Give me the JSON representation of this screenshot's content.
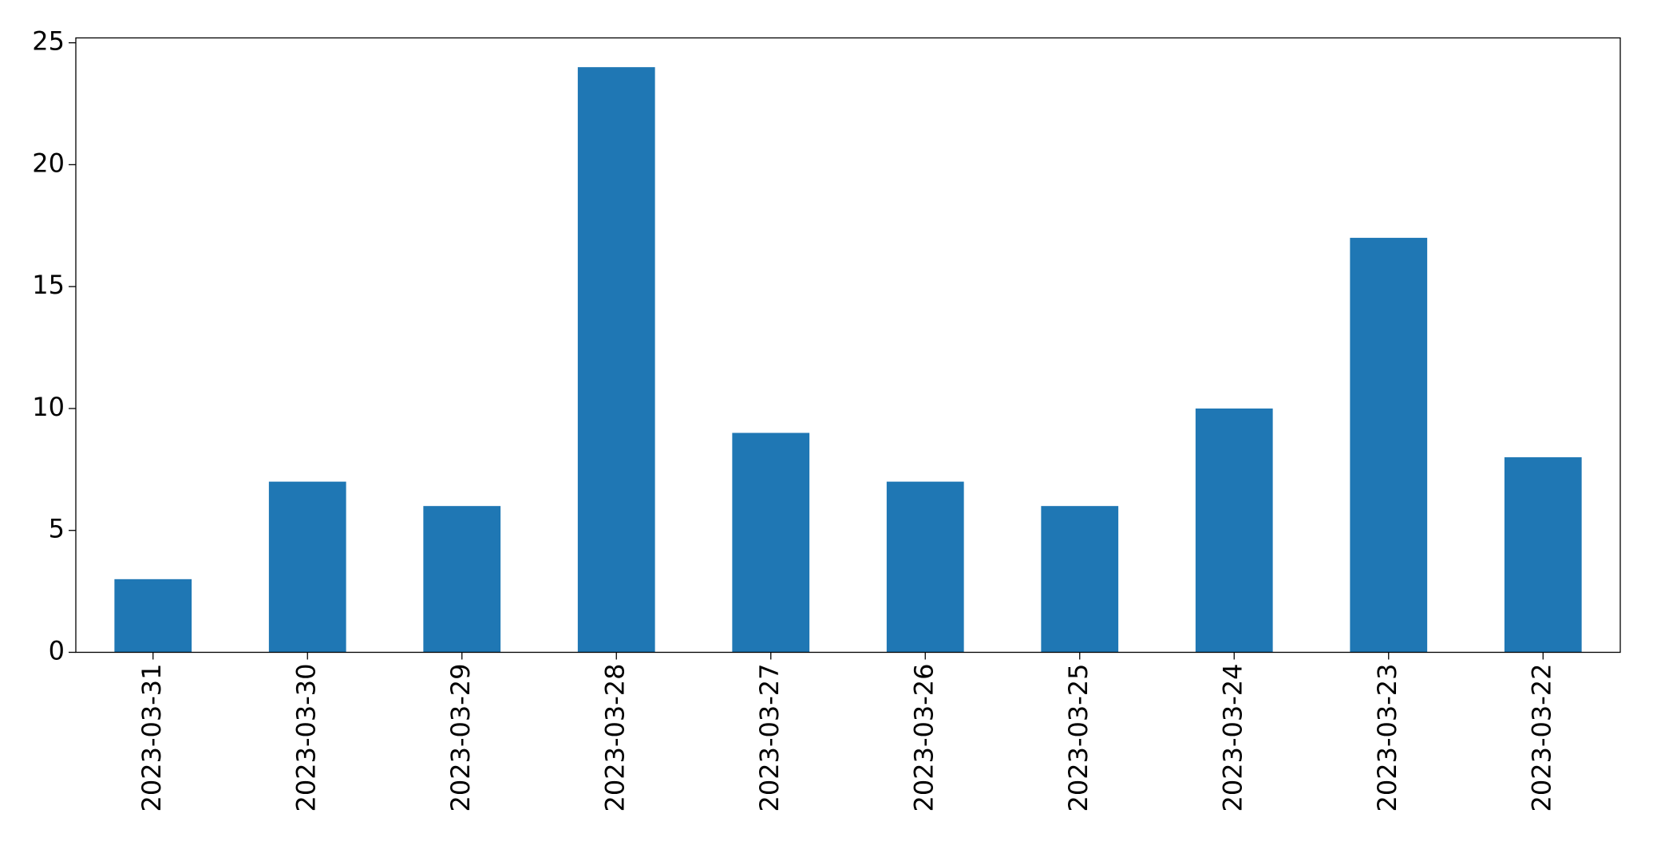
{
  "chart_data": {
    "type": "bar",
    "categories": [
      "2023-03-31",
      "2023-03-30",
      "2023-03-29",
      "2023-03-28",
      "2023-03-27",
      "2023-03-26",
      "2023-03-25",
      "2023-03-24",
      "2023-03-23",
      "2023-03-22"
    ],
    "values": [
      3,
      7,
      6,
      24,
      9,
      7,
      6,
      10,
      17,
      8
    ],
    "color": "#1f77b4",
    "ylim": [
      0,
      25.2
    ],
    "yticks": [
      0,
      5,
      10,
      15,
      20,
      25
    ],
    "grid": false
  }
}
